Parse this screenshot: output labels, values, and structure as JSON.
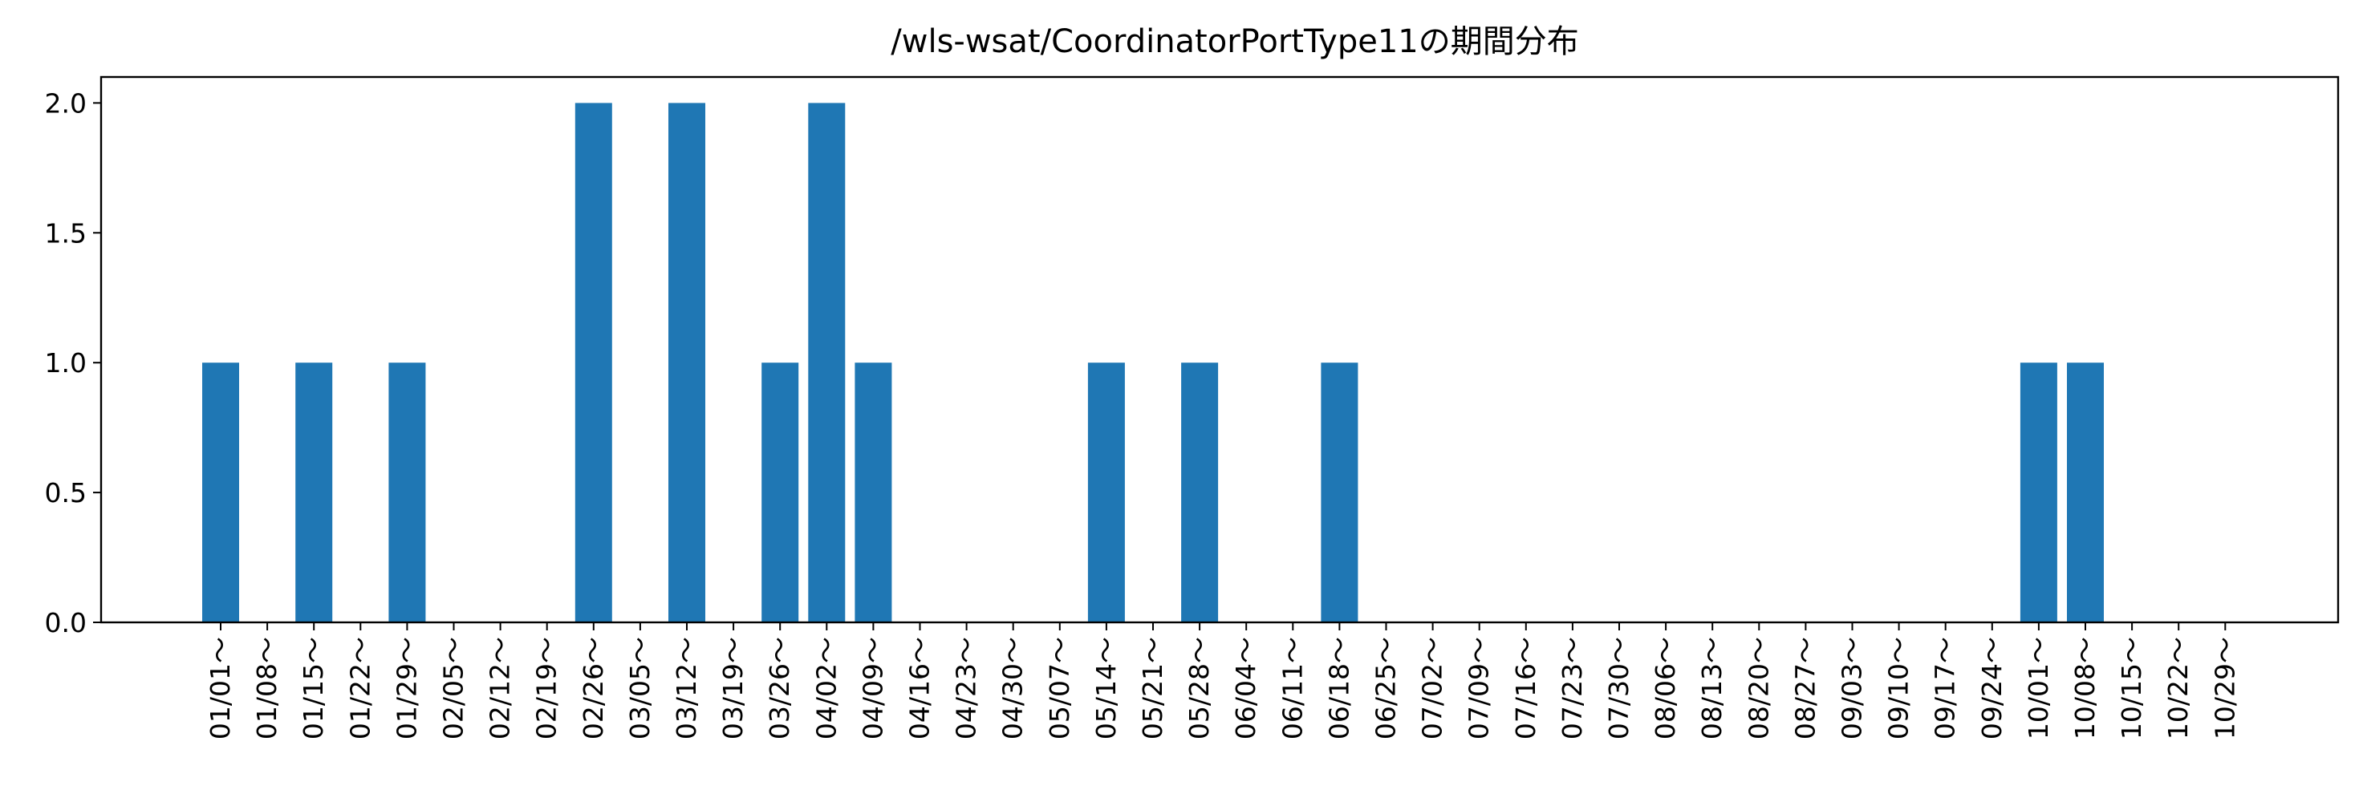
{
  "chart_data": {
    "type": "bar",
    "title": "/wls-wsat/CoordinatorPortType11の期間分布",
    "xlabel": "",
    "ylabel": "",
    "ylim": [
      0,
      2.1
    ],
    "yticks": [
      "0.0",
      "0.5",
      "1.0",
      "1.5",
      "2.0"
    ],
    "grid": false,
    "bar_color": "#1f77b4",
    "categories": [
      "01/01～",
      "01/08～",
      "01/15～",
      "01/22～",
      "01/29～",
      "02/05～",
      "02/12～",
      "02/19～",
      "02/26～",
      "03/05～",
      "03/12～",
      "03/19～",
      "03/26～",
      "04/02～",
      "04/09～",
      "04/16～",
      "04/23～",
      "04/30～",
      "05/07～",
      "05/14～",
      "05/21～",
      "05/28～",
      "06/04～",
      "06/11～",
      "06/18～",
      "06/25～",
      "07/02～",
      "07/09～",
      "07/16～",
      "07/23～",
      "07/30～",
      "08/06～",
      "08/13～",
      "08/20～",
      "08/27～",
      "09/03～",
      "09/10～",
      "09/17～",
      "09/24～",
      "10/01～",
      "10/08～",
      "10/15～",
      "10/22～",
      "10/29～"
    ],
    "bars": [
      {
        "label": "01/01～",
        "value": 1
      },
      {
        "label": "01/15～",
        "value": 1
      },
      {
        "label": "01/29～",
        "value": 1
      },
      {
        "label": "02/26～",
        "value": 2
      },
      {
        "label": "03/12～",
        "value": 2
      },
      {
        "label": "03/26～",
        "value": 1
      },
      {
        "label": "04/02～",
        "value": 2
      },
      {
        "label": "04/09～",
        "value": 1
      },
      {
        "label": "05/14～",
        "value": 1
      },
      {
        "label": "05/28～",
        "value": 1
      },
      {
        "label": "06/18～",
        "value": 1
      },
      {
        "label": "10/01～",
        "value": 1
      },
      {
        "label": "10/08～",
        "value": 1
      }
    ]
  }
}
